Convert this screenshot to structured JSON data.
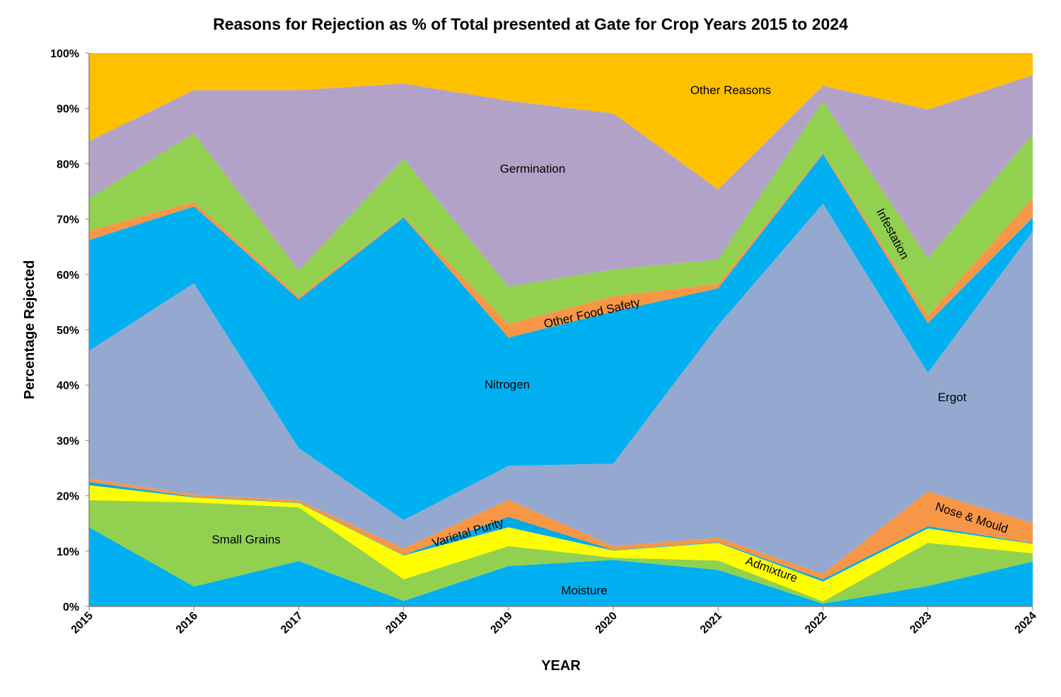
{
  "chart_data": {
    "type": "area",
    "stacked": true,
    "title": "Reasons for Rejection as % of Total presented at Gate for Crop Years 2015 to 2024",
    "xlabel": "YEAR",
    "ylabel": "Percentage Rejected",
    "ylim": [
      0,
      100
    ],
    "yticks": [
      "0%",
      "10%",
      "20%",
      "30%",
      "40%",
      "50%",
      "60%",
      "70%",
      "80%",
      "90%",
      "100%"
    ],
    "categories": [
      "2015",
      "2016",
      "2017",
      "2018",
      "2019",
      "2020",
      "2021",
      "2022",
      "2023",
      "2024"
    ],
    "grid": false,
    "legend": "none (labels inside areas)",
    "series": [
      {
        "name": "Moisture",
        "color": "#00B0F0",
        "values": [
          14.3,
          3.6,
          8.2,
          1.0,
          7.3,
          8.4,
          6.6,
          0.5,
          3.7,
          8.1
        ]
      },
      {
        "name": "Small Grains",
        "color": "#92D050",
        "values": [
          4.9,
          15.2,
          9.7,
          3.9,
          3.6,
          0.4,
          1.7,
          0.4,
          7.8,
          1.5
        ]
      },
      {
        "name": "Admixture",
        "color": "#FFFF00",
        "values": [
          2.7,
          0.9,
          0.8,
          4.3,
          3.4,
          1.3,
          3.2,
          3.6,
          2.6,
          1.7
        ]
      },
      {
        "name": "Varietal Purity",
        "color": "#00A9E6",
        "values": [
          0.6,
          0.1,
          0.1,
          0.1,
          1.9,
          0.1,
          0.1,
          0.4,
          0.4,
          0.1
        ]
      },
      {
        "name": "Nose & Mould",
        "color": "#F79646",
        "values": [
          0.6,
          0.4,
          0.4,
          1.2,
          3.1,
          0.7,
          0.8,
          1.0,
          6.3,
          3.7
        ]
      },
      {
        "name": "Ergot",
        "color": "#95A9D0",
        "values": [
          23.1,
          38.2,
          9.4,
          5.1,
          6.1,
          14.9,
          38.4,
          66.9,
          21.4,
          52.7
        ]
      },
      {
        "name": "Nitrogen",
        "color": "#00B0F0",
        "values": [
          20.0,
          13.9,
          26.9,
          54.7,
          23.2,
          27.5,
          6.7,
          9.0,
          9.0,
          2.5
        ]
      },
      {
        "name": "Other Food Safety",
        "color": "#F79646",
        "values": [
          1.7,
          0.8,
          0.5,
          0.2,
          2.4,
          2.8,
          0.8,
          0.2,
          1.4,
          3.5
        ]
      },
      {
        "name": "Infestation",
        "color": "#92D050",
        "values": [
          5.8,
          12.4,
          4.7,
          10.4,
          6.8,
          4.8,
          4.4,
          9.3,
          10.3,
          11.5
        ]
      },
      {
        "name": "Germination",
        "color": "#B3A2C7",
        "values": [
          10.4,
          7.8,
          32.6,
          13.6,
          33.6,
          28.2,
          12.7,
          2.8,
          26.9,
          10.7
        ]
      },
      {
        "name": "Other Reasons",
        "color": "#FFC000",
        "values": [
          15.9,
          6.7,
          6.7,
          5.5,
          8.6,
          10.9,
          24.6,
          5.9,
          10.2,
          4.0
        ]
      }
    ]
  }
}
